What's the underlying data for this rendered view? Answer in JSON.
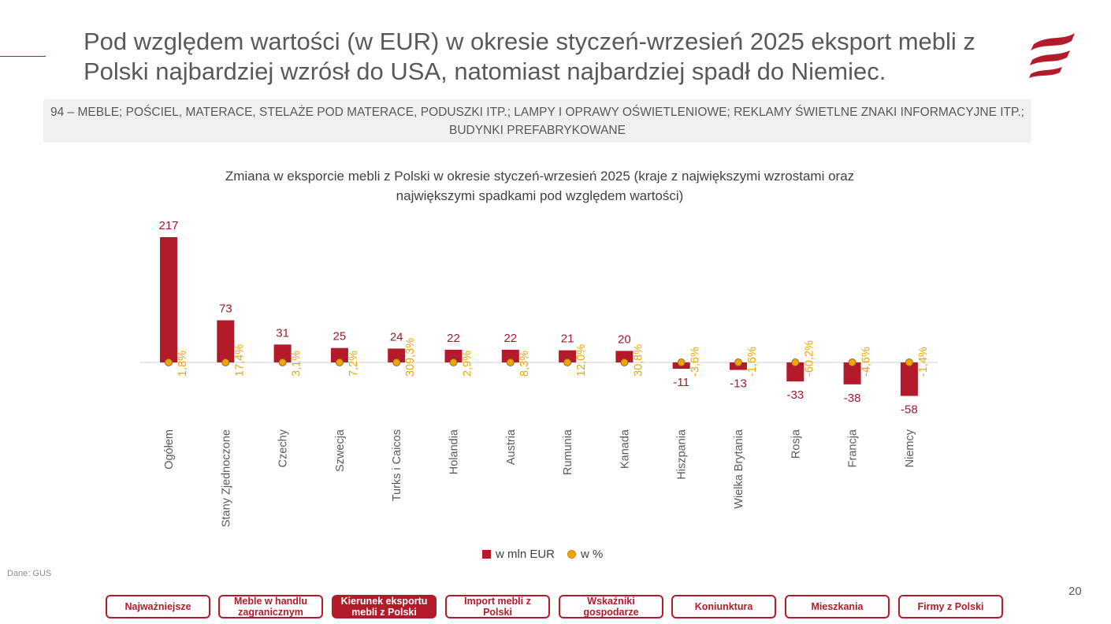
{
  "header": {
    "title": "Pod względem wartości (w EUR) w okresie styczeń-wrzesień 2025 eksport mebli z Polski najbardziej wzrósł do USA, natomiast najbardziej spadł do Niemiec.",
    "logo": "brand-logo-icon"
  },
  "subtitle": "94 – MEBLE; POŚCIEL, MATERACE, STELAŻE POD MATERACE, PODUSZKI ITP.; LAMPY I OPRAWY OŚWIETLENIOWE; REKLAMY ŚWIETLNE ZNAKI INFORMACYJNE ITP.; BUDYNKI PREFABRYKOWANE",
  "chart_data": {
    "type": "bar",
    "title": "Zmiana w eksporcie mebli z Polski w okresie styczeń-wrzesień 2025 (kraje z największymi wzrostami oraz największymi spadkami pod względem wartości)",
    "xlabel": "",
    "ylabel": "",
    "categories": [
      "Ogółem",
      "Stany Zjednoczone",
      "Czechy",
      "Szwecja",
      "Turks i Caicos",
      "Holandia",
      "Austria",
      "Rumunia",
      "Kanada",
      "Hiszpania",
      "Wielka Brytania",
      "Rosja",
      "Francja",
      "Niemcy"
    ],
    "series": [
      {
        "name": "w mln EUR",
        "type": "bar",
        "color": "#b31b2b",
        "values": [
          217,
          73,
          31,
          25,
          24,
          22,
          22,
          21,
          20,
          -11,
          -13,
          -33,
          -38,
          -58
        ],
        "labels": [
          "217",
          "73",
          "31",
          "25",
          "24",
          "22",
          "22",
          "21",
          "20",
          "-11",
          "-13",
          "-33",
          "-38",
          "-58"
        ]
      },
      {
        "name": "w %",
        "type": "scatter",
        "color": "#f0a500",
        "values": [
          1.8,
          17.4,
          3.1,
          7.2,
          309.3,
          2.9,
          8.3,
          12.0,
          30.8,
          -3.6,
          -1.6,
          -60.2,
          -4.6,
          -1.4
        ],
        "labels": [
          "1,8%",
          "17,4%",
          "3,1%",
          "7,2%",
          "309,3%",
          "2,9%",
          "8,3%",
          "12,0%",
          "30,8%",
          "-3,6%",
          "-1,6%",
          "-60,2%",
          "-4,6%",
          "-1,4%"
        ]
      }
    ],
    "ylim": [
      -60,
      220
    ],
    "grid": false,
    "legend": "bottom-center"
  },
  "legend": {
    "bar_label": "w mln EUR",
    "dot_label": "w %"
  },
  "source": "Dane: GUS",
  "page_number": "20",
  "nav": [
    {
      "label": "Najważniejsze",
      "active": false
    },
    {
      "label": "Meble w handlu zagranicznym",
      "active": false
    },
    {
      "label": "Kierunek eksportu mebli z Polski",
      "active": true
    },
    {
      "label": "Import mebli z Polski",
      "active": false
    },
    {
      "label": "Wskaźniki gospodarze",
      "active": false
    },
    {
      "label": "Koniunktura",
      "active": false
    },
    {
      "label": "Mieszkania",
      "active": false
    },
    {
      "label": "Firmy z Polski",
      "active": false
    }
  ]
}
